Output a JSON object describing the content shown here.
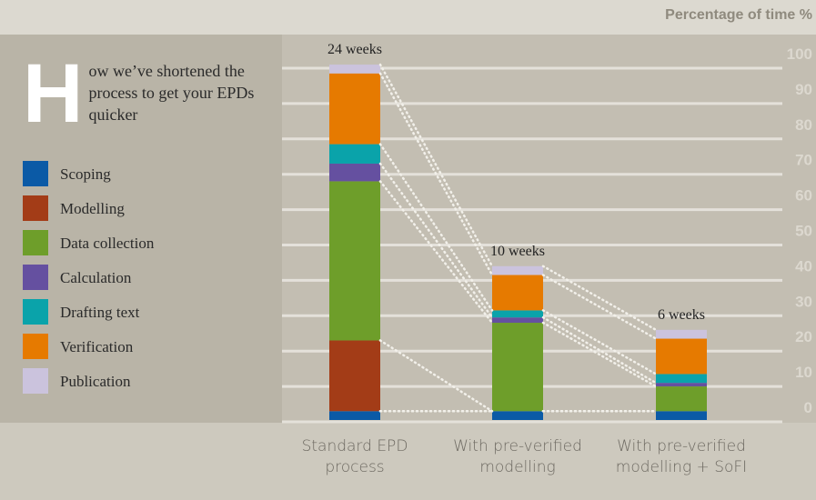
{
  "chart_data": {
    "type": "stacked_bar",
    "title": "How we’ve shortened the process to get your EPDs quicker",
    "y_axis_label": "Percentage of time %",
    "categories": [
      "Standard EPD process",
      "With pre-verified modelling",
      "With pre-verified modelling + SoFI"
    ],
    "annotations": [
      "24 weeks",
      "10 weeks",
      "6 weeks"
    ],
    "series": [
      {
        "name": "Scoping",
        "color": "#0b5aa6",
        "values": [
          2.5,
          2.5,
          2.5
        ]
      },
      {
        "name": "Modelling",
        "color": "#a33c17",
        "values": [
          20,
          0,
          0
        ]
      },
      {
        "name": "Data collection",
        "color": "#6e9e2a",
        "values": [
          45,
          25,
          7
        ]
      },
      {
        "name": "Calculation",
        "color": "#6550a0",
        "values": [
          5,
          1.5,
          1
        ]
      },
      {
        "name": "Drafting text",
        "color": "#0aa3aa",
        "values": [
          5.5,
          2,
          2.5
        ]
      },
      {
        "name": "Verification",
        "color": "#e67a00",
        "values": [
          20,
          10,
          10
        ]
      },
      {
        "name": "Publication",
        "color": "#cbc3dd",
        "values": [
          2.5,
          2.5,
          2.5
        ]
      }
    ],
    "ylim": [
      0,
      100
    ],
    "yticks": [
      0,
      10,
      20,
      30,
      40,
      50,
      60,
      70,
      80,
      90,
      100
    ],
    "grid": true
  }
}
